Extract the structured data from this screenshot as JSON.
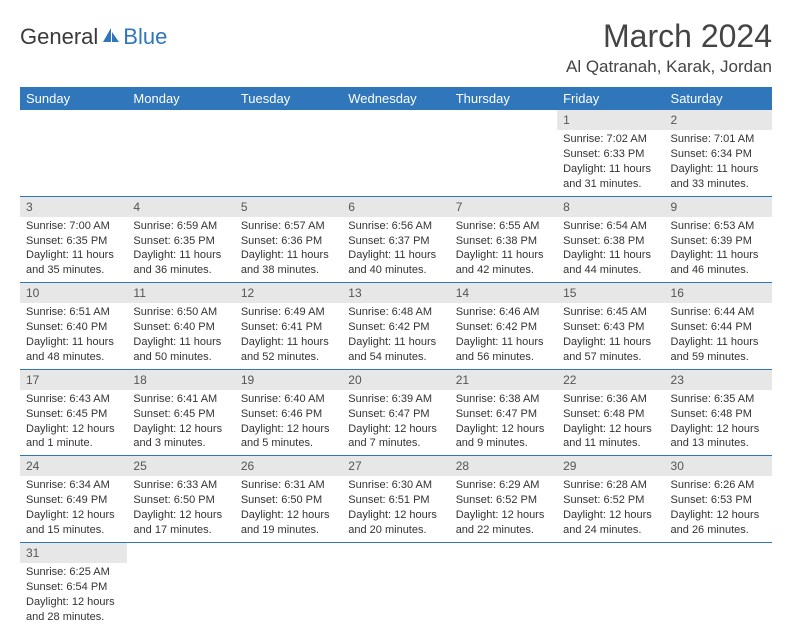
{
  "logo": {
    "text1": "General",
    "text2": "Blue"
  },
  "title": "March 2024",
  "location": "Al Qatranah, Karak, Jordan",
  "colors": {
    "headerBg": "#2f76bb",
    "dayNumBg": "#e7e7e7",
    "rowBorder": "#2f76bb"
  },
  "dayHeaders": [
    "Sunday",
    "Monday",
    "Tuesday",
    "Wednesday",
    "Thursday",
    "Friday",
    "Saturday"
  ],
  "weeks": [
    [
      {
        "empty": true
      },
      {
        "empty": true
      },
      {
        "empty": true
      },
      {
        "empty": true
      },
      {
        "empty": true
      },
      {
        "n": "1",
        "sr": "Sunrise: 7:02 AM",
        "ss": "Sunset: 6:33 PM",
        "dl1": "Daylight: 11 hours",
        "dl2": "and 31 minutes."
      },
      {
        "n": "2",
        "sr": "Sunrise: 7:01 AM",
        "ss": "Sunset: 6:34 PM",
        "dl1": "Daylight: 11 hours",
        "dl2": "and 33 minutes."
      }
    ],
    [
      {
        "n": "3",
        "sr": "Sunrise: 7:00 AM",
        "ss": "Sunset: 6:35 PM",
        "dl1": "Daylight: 11 hours",
        "dl2": "and 35 minutes."
      },
      {
        "n": "4",
        "sr": "Sunrise: 6:59 AM",
        "ss": "Sunset: 6:35 PM",
        "dl1": "Daylight: 11 hours",
        "dl2": "and 36 minutes."
      },
      {
        "n": "5",
        "sr": "Sunrise: 6:57 AM",
        "ss": "Sunset: 6:36 PM",
        "dl1": "Daylight: 11 hours",
        "dl2": "and 38 minutes."
      },
      {
        "n": "6",
        "sr": "Sunrise: 6:56 AM",
        "ss": "Sunset: 6:37 PM",
        "dl1": "Daylight: 11 hours",
        "dl2": "and 40 minutes."
      },
      {
        "n": "7",
        "sr": "Sunrise: 6:55 AM",
        "ss": "Sunset: 6:38 PM",
        "dl1": "Daylight: 11 hours",
        "dl2": "and 42 minutes."
      },
      {
        "n": "8",
        "sr": "Sunrise: 6:54 AM",
        "ss": "Sunset: 6:38 PM",
        "dl1": "Daylight: 11 hours",
        "dl2": "and 44 minutes."
      },
      {
        "n": "9",
        "sr": "Sunrise: 6:53 AM",
        "ss": "Sunset: 6:39 PM",
        "dl1": "Daylight: 11 hours",
        "dl2": "and 46 minutes."
      }
    ],
    [
      {
        "n": "10",
        "sr": "Sunrise: 6:51 AM",
        "ss": "Sunset: 6:40 PM",
        "dl1": "Daylight: 11 hours",
        "dl2": "and 48 minutes."
      },
      {
        "n": "11",
        "sr": "Sunrise: 6:50 AM",
        "ss": "Sunset: 6:40 PM",
        "dl1": "Daylight: 11 hours",
        "dl2": "and 50 minutes."
      },
      {
        "n": "12",
        "sr": "Sunrise: 6:49 AM",
        "ss": "Sunset: 6:41 PM",
        "dl1": "Daylight: 11 hours",
        "dl2": "and 52 minutes."
      },
      {
        "n": "13",
        "sr": "Sunrise: 6:48 AM",
        "ss": "Sunset: 6:42 PM",
        "dl1": "Daylight: 11 hours",
        "dl2": "and 54 minutes."
      },
      {
        "n": "14",
        "sr": "Sunrise: 6:46 AM",
        "ss": "Sunset: 6:42 PM",
        "dl1": "Daylight: 11 hours",
        "dl2": "and 56 minutes."
      },
      {
        "n": "15",
        "sr": "Sunrise: 6:45 AM",
        "ss": "Sunset: 6:43 PM",
        "dl1": "Daylight: 11 hours",
        "dl2": "and 57 minutes."
      },
      {
        "n": "16",
        "sr": "Sunrise: 6:44 AM",
        "ss": "Sunset: 6:44 PM",
        "dl1": "Daylight: 11 hours",
        "dl2": "and 59 minutes."
      }
    ],
    [
      {
        "n": "17",
        "sr": "Sunrise: 6:43 AM",
        "ss": "Sunset: 6:45 PM",
        "dl1": "Daylight: 12 hours",
        "dl2": "and 1 minute."
      },
      {
        "n": "18",
        "sr": "Sunrise: 6:41 AM",
        "ss": "Sunset: 6:45 PM",
        "dl1": "Daylight: 12 hours",
        "dl2": "and 3 minutes."
      },
      {
        "n": "19",
        "sr": "Sunrise: 6:40 AM",
        "ss": "Sunset: 6:46 PM",
        "dl1": "Daylight: 12 hours",
        "dl2": "and 5 minutes."
      },
      {
        "n": "20",
        "sr": "Sunrise: 6:39 AM",
        "ss": "Sunset: 6:47 PM",
        "dl1": "Daylight: 12 hours",
        "dl2": "and 7 minutes."
      },
      {
        "n": "21",
        "sr": "Sunrise: 6:38 AM",
        "ss": "Sunset: 6:47 PM",
        "dl1": "Daylight: 12 hours",
        "dl2": "and 9 minutes."
      },
      {
        "n": "22",
        "sr": "Sunrise: 6:36 AM",
        "ss": "Sunset: 6:48 PM",
        "dl1": "Daylight: 12 hours",
        "dl2": "and 11 minutes."
      },
      {
        "n": "23",
        "sr": "Sunrise: 6:35 AM",
        "ss": "Sunset: 6:48 PM",
        "dl1": "Daylight: 12 hours",
        "dl2": "and 13 minutes."
      }
    ],
    [
      {
        "n": "24",
        "sr": "Sunrise: 6:34 AM",
        "ss": "Sunset: 6:49 PM",
        "dl1": "Daylight: 12 hours",
        "dl2": "and 15 minutes."
      },
      {
        "n": "25",
        "sr": "Sunrise: 6:33 AM",
        "ss": "Sunset: 6:50 PM",
        "dl1": "Daylight: 12 hours",
        "dl2": "and 17 minutes."
      },
      {
        "n": "26",
        "sr": "Sunrise: 6:31 AM",
        "ss": "Sunset: 6:50 PM",
        "dl1": "Daylight: 12 hours",
        "dl2": "and 19 minutes."
      },
      {
        "n": "27",
        "sr": "Sunrise: 6:30 AM",
        "ss": "Sunset: 6:51 PM",
        "dl1": "Daylight: 12 hours",
        "dl2": "and 20 minutes."
      },
      {
        "n": "28",
        "sr": "Sunrise: 6:29 AM",
        "ss": "Sunset: 6:52 PM",
        "dl1": "Daylight: 12 hours",
        "dl2": "and 22 minutes."
      },
      {
        "n": "29",
        "sr": "Sunrise: 6:28 AM",
        "ss": "Sunset: 6:52 PM",
        "dl1": "Daylight: 12 hours",
        "dl2": "and 24 minutes."
      },
      {
        "n": "30",
        "sr": "Sunrise: 6:26 AM",
        "ss": "Sunset: 6:53 PM",
        "dl1": "Daylight: 12 hours",
        "dl2": "and 26 minutes."
      }
    ],
    [
      {
        "n": "31",
        "sr": "Sunrise: 6:25 AM",
        "ss": "Sunset: 6:54 PM",
        "dl1": "Daylight: 12 hours",
        "dl2": "and 28 minutes."
      },
      {
        "empty": true
      },
      {
        "empty": true
      },
      {
        "empty": true
      },
      {
        "empty": true
      },
      {
        "empty": true
      },
      {
        "empty": true
      }
    ]
  ]
}
